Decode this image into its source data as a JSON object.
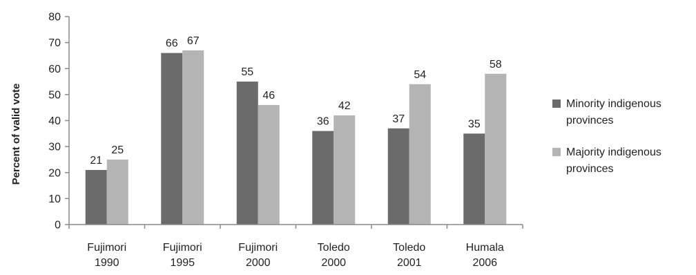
{
  "chart_data": {
    "type": "bar",
    "title": "",
    "ylabel": "Percent of valid vote",
    "xlabel": "",
    "ylim": [
      0,
      80
    ],
    "yticks": [
      0,
      10,
      20,
      30,
      40,
      50,
      60,
      70,
      80
    ],
    "grid": false,
    "legend_position": "right",
    "categories": [
      [
        "Fujimori",
        "1990"
      ],
      [
        "Fujimori",
        "1995"
      ],
      [
        "Fujimori",
        "2000"
      ],
      [
        "Toledo",
        "2000"
      ],
      [
        "Toledo",
        "2001"
      ],
      [
        "Humala",
        "2006"
      ]
    ],
    "series": [
      {
        "name": [
          "Minority indigenous",
          "provinces"
        ],
        "values": [
          21,
          66,
          55,
          36,
          37,
          35
        ],
        "color": "#6b6b6b"
      },
      {
        "name": [
          "Majority indigenous",
          "provinces"
        ],
        "values": [
          25,
          67,
          46,
          42,
          54,
          58
        ],
        "color": "#b4b4b4"
      }
    ]
  }
}
